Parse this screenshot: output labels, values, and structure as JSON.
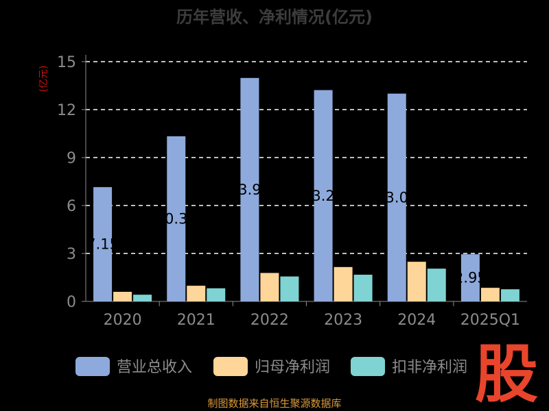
{
  "chart_data": {
    "type": "bar",
    "title": "历年营收、净利情况(亿元)",
    "ylabel": "(亿元)",
    "ylim": [
      0,
      15
    ],
    "yticks": [
      0,
      3,
      6,
      9,
      12,
      15
    ],
    "grid": true,
    "legend_position": "bottom",
    "categories": [
      "2020",
      "2021",
      "2022",
      "2023",
      "2024",
      "2025Q1"
    ],
    "series": [
      {
        "name": "营业总收入",
        "color": "#8eaadc",
        "values": [
          7.15,
          10.33,
          13.98,
          13.22,
          13.0,
          2.95
        ]
      },
      {
        "name": "归母净利润",
        "color": "#ffd699",
        "values": [
          0.6,
          0.98,
          1.78,
          2.15,
          2.48,
          0.85
        ]
      },
      {
        "name": "扣非净利润",
        "color": "#7fd3d3",
        "values": [
          0.42,
          0.82,
          1.56,
          1.67,
          2.05,
          0.76
        ]
      }
    ],
    "data_labels": [
      "7.15",
      "10.33",
      "13.98",
      "13.22",
      "13.00",
      "2.95"
    ]
  },
  "watermark": {
    "text": "股",
    "color": "#e8452c"
  },
  "footer": {
    "text": "制图数据来自恒生聚源数据库",
    "color": "#d99a3c"
  },
  "colors": {
    "title": "#3d3d3d",
    "axis_text": "#8c8c8c",
    "ylabel": "#cc1111",
    "grid": "#ffffff",
    "label": "#000000"
  }
}
